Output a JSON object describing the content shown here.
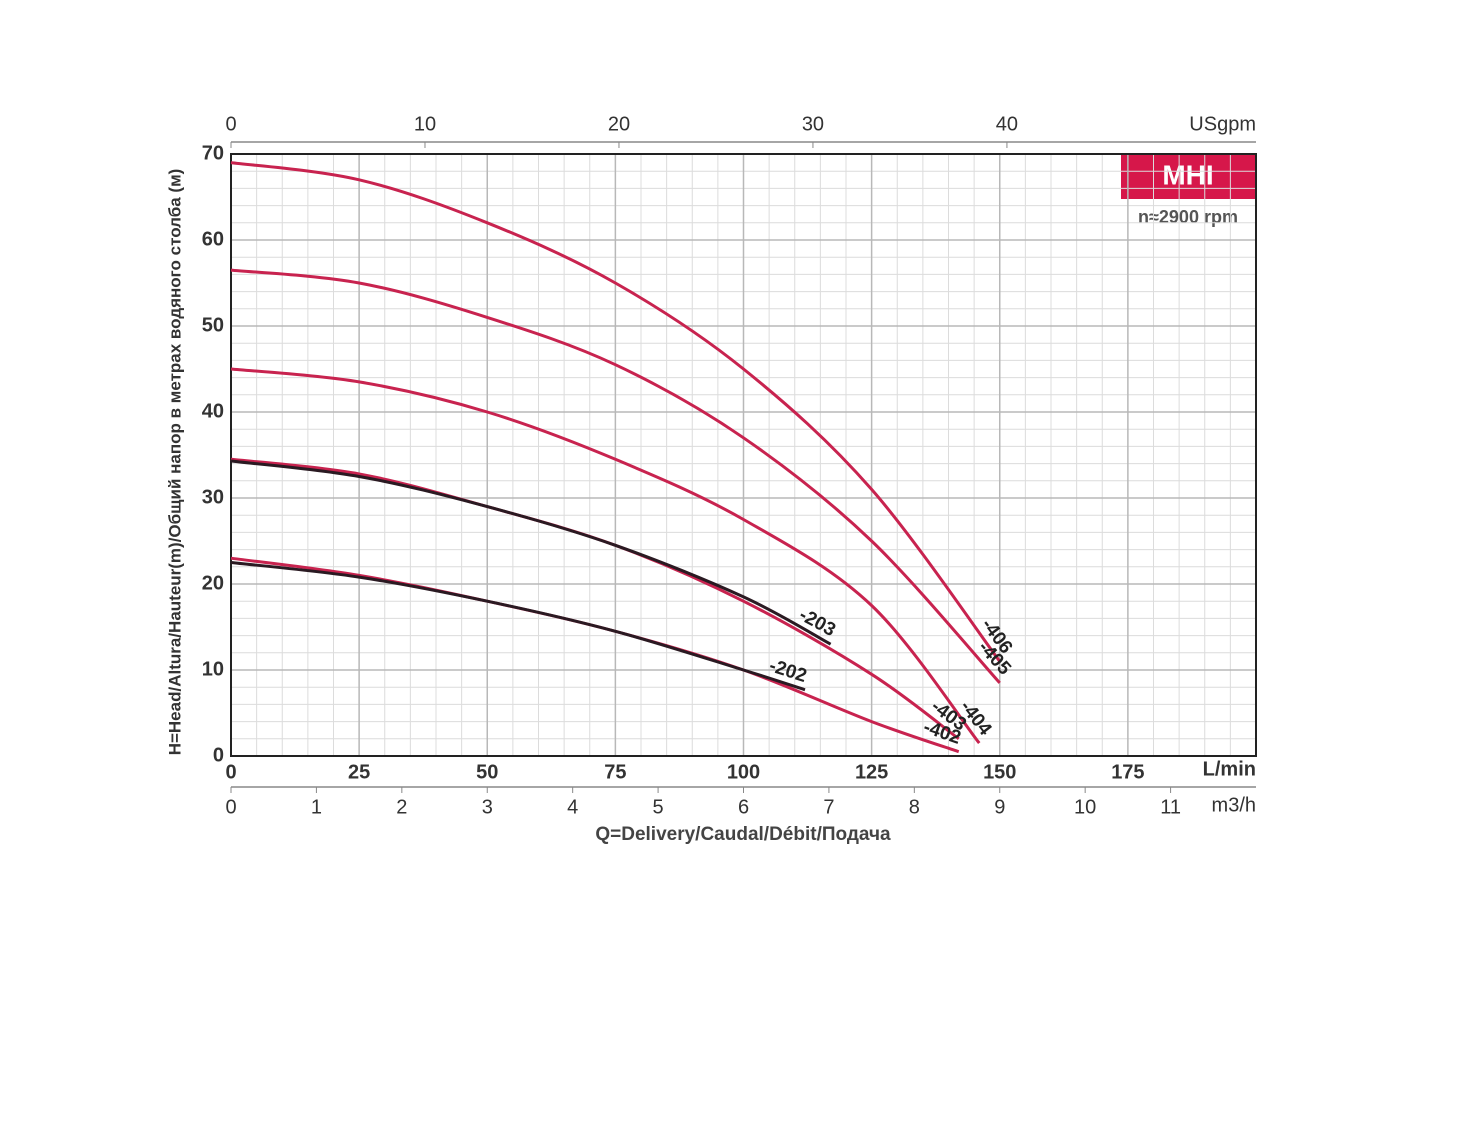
{
  "chart_data": {
    "type": "line",
    "badge": "MHI",
    "subtitle": "n≈2900 rpm",
    "y_label": "H=Head/Altura/Hauteur(m)/Общий напор в метрах водяного столба (м)",
    "x_label": "Q=Delivery/Caudal/Débit/Подача",
    "x_unit": "L/min",
    "xlim": [
      0,
      200
    ],
    "xticks": [
      0,
      25,
      50,
      75,
      100,
      125,
      150,
      175
    ],
    "xminor": [
      5,
      10,
      15,
      20,
      30,
      35,
      40,
      45,
      55,
      60,
      65,
      70,
      80,
      85,
      90,
      95,
      105,
      110,
      115,
      120,
      130,
      135,
      140,
      145,
      155,
      160,
      165,
      170,
      180,
      185,
      190,
      195
    ],
    "ylim": [
      0,
      70
    ],
    "yticks": [
      0,
      10,
      20,
      30,
      40,
      50,
      60,
      70
    ],
    "yminor": [
      2,
      4,
      6,
      8,
      12,
      14,
      16,
      18,
      22,
      24,
      26,
      28,
      32,
      34,
      36,
      38,
      42,
      44,
      46,
      48,
      52,
      54,
      56,
      58,
      62,
      64,
      66,
      68
    ],
    "x2_unit": "USgpm",
    "x2lim": [
      0,
      52.84
    ],
    "x2ticks": [
      0,
      10,
      20,
      30,
      40
    ],
    "x3_unit": "m3/h",
    "x3lim": [
      0,
      12
    ],
    "x3ticks": [
      0,
      1,
      2,
      3,
      4,
      5,
      6,
      7,
      8,
      9,
      10,
      11
    ],
    "grid": true,
    "series": [
      {
        "name": "-406",
        "color": "#c8234f",
        "x": [
          0,
          25,
          50,
          75,
          100,
          125,
          150
        ],
        "values": [
          69,
          67,
          62,
          55,
          45,
          31,
          11
        ]
      },
      {
        "name": "-405",
        "color": "#c8234f",
        "x": [
          0,
          25,
          50,
          75,
          100,
          125,
          150
        ],
        "values": [
          56.5,
          55,
          51,
          45.5,
          37,
          25,
          8.5
        ]
      },
      {
        "name": "-404",
        "color": "#c8234f",
        "x": [
          0,
          25,
          50,
          75,
          100,
          125,
          146
        ],
        "values": [
          45,
          43.5,
          40,
          34.5,
          27.5,
          17.5,
          1.5
        ]
      },
      {
        "name": "-403",
        "color": "#c8234f",
        "x": [
          0,
          25,
          50,
          75,
          100,
          125,
          142
        ],
        "values": [
          34.5,
          32.8,
          29,
          24.5,
          18,
          9.5,
          2
        ]
      },
      {
        "name": "-402",
        "color": "#c8234f",
        "x": [
          0,
          25,
          50,
          75,
          100,
          125,
          142
        ],
        "values": [
          23,
          21,
          18,
          14.5,
          10,
          4,
          0.5
        ]
      },
      {
        "name": "-203",
        "color": "#2a1a22",
        "x": [
          0,
          25,
          50,
          75,
          100,
          117
        ],
        "values": [
          34.3,
          32.5,
          29,
          24.5,
          18.5,
          13
        ]
      },
      {
        "name": "-202",
        "color": "#2a1a22",
        "x": [
          0,
          25,
          50,
          75,
          100,
          112
        ],
        "values": [
          22.5,
          20.8,
          18,
          14.5,
          10,
          7.7
        ]
      }
    ]
  }
}
